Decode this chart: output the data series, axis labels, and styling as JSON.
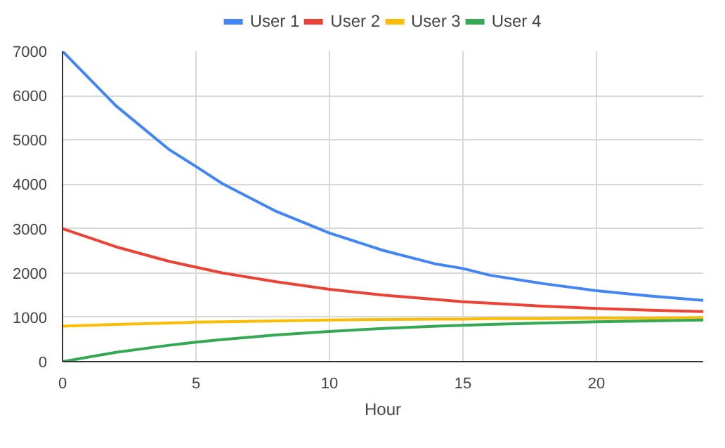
{
  "chart_data": {
    "type": "line",
    "xlabel": "Hour",
    "x": [
      0,
      2,
      4,
      5,
      6,
      8,
      10,
      12,
      14,
      15,
      16,
      18,
      20,
      22,
      24
    ],
    "series": [
      {
        "name": "User 1",
        "color": "#4285f4",
        "values": [
          7000,
          5770,
          4780,
          4400,
          4010,
          3390,
          2900,
          2510,
          2200,
          2100,
          1950,
          1760,
          1600,
          1480,
          1380
        ]
      },
      {
        "name": "User 2",
        "color": "#ea4335",
        "values": [
          3000,
          2590,
          2260,
          2130,
          2000,
          1800,
          1630,
          1500,
          1400,
          1350,
          1320,
          1250,
          1200,
          1160,
          1130
        ]
      },
      {
        "name": "User 3",
        "color": "#fbbc04",
        "values": [
          800,
          840,
          870,
          890,
          900,
          920,
          940,
          950,
          960,
          960,
          970,
          970,
          980,
          980,
          990
        ]
      },
      {
        "name": "User 4",
        "color": "#34a853",
        "values": [
          0,
          210,
          370,
          440,
          500,
          600,
          680,
          750,
          800,
          820,
          840,
          870,
          900,
          920,
          940
        ]
      }
    ],
    "xlim": [
      0,
      24
    ],
    "xticks": [
      0,
      5,
      10,
      15,
      20
    ],
    "ylim": [
      0,
      7000
    ],
    "yticks": [
      0,
      1000,
      2000,
      3000,
      4000,
      5000,
      6000,
      7000
    ],
    "grid": true,
    "legend": "top",
    "marker": "none",
    "line_style": "solid"
  }
}
